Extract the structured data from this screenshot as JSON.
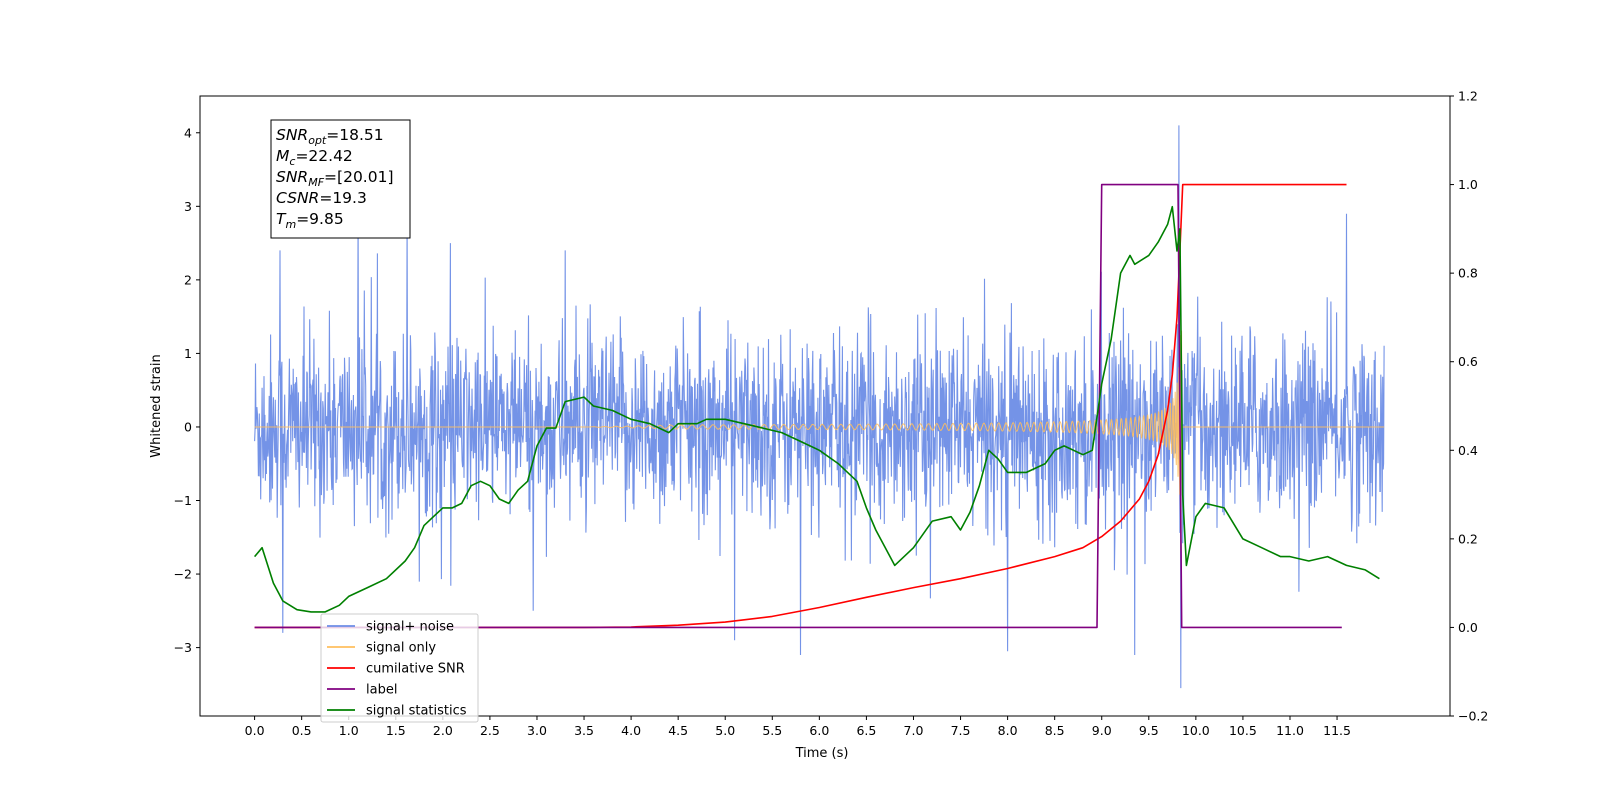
{
  "chart_data": {
    "type": "line",
    "xlabel": "Time (s)",
    "ylabel_left": "Whitened strain",
    "ylabel_right": "",
    "xlim": [
      -0.58,
      12.7
    ],
    "ylim_left": [
      -3.93,
      4.5
    ],
    "ylim_right": [
      -0.2,
      1.2
    ],
    "x_ticks": [
      0.0,
      0.5,
      1.0,
      1.5,
      2.0,
      2.5,
      3.0,
      3.5,
      4.0,
      4.5,
      5.0,
      5.5,
      6.0,
      6.5,
      7.0,
      7.5,
      8.0,
      8.5,
      9.0,
      9.5,
      10.0,
      10.5,
      11.0,
      11.5
    ],
    "x_tick_labels": [
      "0.0",
      "0.5",
      "1.0",
      "1.5",
      "2.0",
      "2.5",
      "3.0",
      "3.5",
      "4.0",
      "4.5",
      "5.0",
      "5.5",
      "6.0",
      "6.5",
      "7.0",
      "7.5",
      "8.0",
      "8.5",
      "9.0",
      "9.5",
      "10.0",
      "10.5",
      "11.0",
      "11.5"
    ],
    "y_ticks_left": [
      4,
      3,
      2,
      1,
      0,
      -1,
      -2,
      -3
    ],
    "y_tick_labels_left": [
      "4",
      "3",
      "2",
      "1",
      "0",
      "−1",
      "−2",
      "−3"
    ],
    "y_ticks_right": [
      1.2,
      1.0,
      0.8,
      0.6,
      0.4,
      0.2,
      0.0,
      -0.2
    ],
    "y_tick_labels_right": [
      "1.2",
      "1.0",
      "0.8",
      "0.6",
      "0.4",
      "0.2",
      "0.0",
      "−0.2"
    ],
    "grid": false,
    "legend_position": "lower-left",
    "info_box": [
      {
        "base": "SNR",
        "sub": "opt",
        "rest": "=18.51"
      },
      {
        "base": "M",
        "sub": "c",
        "rest": "=22.42"
      },
      {
        "base": "SNR",
        "sub": "MF",
        "rest": "=[20.01]"
      },
      {
        "base": "CSNR",
        "sub": "",
        "rest": "=19.3"
      },
      {
        "base": "T",
        "sub": "m",
        "rest": "=9.85"
      }
    ],
    "series": [
      {
        "name": "signal+ noise",
        "axis": "left",
        "color": "#6d8de6",
        "kind": "noise",
        "x_range": [
          0.0,
          12.0
        ],
        "envelope": 1.6,
        "peaks": [
          {
            "x": 0.3,
            "y": -2.8
          },
          {
            "x": 0.27,
            "y": 2.4
          },
          {
            "x": 1.1,
            "y": 2.9
          },
          {
            "x": 1.62,
            "y": 2.8
          },
          {
            "x": 2.08,
            "y": 2.5
          },
          {
            "x": 3.3,
            "y": 2.4
          },
          {
            "x": 5.1,
            "y": -2.9
          },
          {
            "x": 5.8,
            "y": -3.1
          },
          {
            "x": 8.0,
            "y": -3.05
          },
          {
            "x": 9.35,
            "y": -3.1
          },
          {
            "x": 9.82,
            "y": 4.1
          },
          {
            "x": 9.84,
            "y": -3.55
          },
          {
            "x": 11.6,
            "y": 2.9
          }
        ]
      },
      {
        "name": "signal only",
        "axis": "left",
        "color": "#ffbf5e",
        "kind": "chirp",
        "x_range": [
          0.0,
          12.0
        ],
        "merger_time": 9.85
      },
      {
        "name": "cumilative SNR",
        "axis": "right",
        "color": "#ff0000",
        "points": [
          [
            0.0,
            0.0
          ],
          [
            3.5,
            0.0
          ],
          [
            4.0,
            0.001
          ],
          [
            4.5,
            0.005
          ],
          [
            5.0,
            0.012
          ],
          [
            5.5,
            0.025
          ],
          [
            6.0,
            0.045
          ],
          [
            6.5,
            0.068
          ],
          [
            7.0,
            0.09
          ],
          [
            7.5,
            0.11
          ],
          [
            8.0,
            0.133
          ],
          [
            8.5,
            0.16
          ],
          [
            8.8,
            0.18
          ],
          [
            9.0,
            0.205
          ],
          [
            9.2,
            0.24
          ],
          [
            9.4,
            0.29
          ],
          [
            9.5,
            0.33
          ],
          [
            9.6,
            0.39
          ],
          [
            9.7,
            0.49
          ],
          [
            9.75,
            0.57
          ],
          [
            9.8,
            0.7
          ],
          [
            9.83,
            0.85
          ],
          [
            9.86,
            1.0
          ],
          [
            11.6,
            1.0
          ]
        ]
      },
      {
        "name": "label",
        "axis": "right",
        "color": "#800080",
        "points": [
          [
            0.0,
            0.0
          ],
          [
            8.95,
            0.0
          ],
          [
            9.0,
            1.0
          ],
          [
            9.81,
            1.0
          ],
          [
            9.85,
            0.0
          ],
          [
            11.55,
            0.0
          ]
        ]
      },
      {
        "name": "signal statistics",
        "axis": "right",
        "color": "#008000",
        "points": [
          [
            0.0,
            0.16
          ],
          [
            0.08,
            0.18
          ],
          [
            0.2,
            0.1
          ],
          [
            0.3,
            0.06
          ],
          [
            0.45,
            0.04
          ],
          [
            0.6,
            0.035
          ],
          [
            0.75,
            0.035
          ],
          [
            0.9,
            0.05
          ],
          [
            1.0,
            0.07
          ],
          [
            1.2,
            0.09
          ],
          [
            1.4,
            0.11
          ],
          [
            1.6,
            0.15
          ],
          [
            1.7,
            0.18
          ],
          [
            1.8,
            0.23
          ],
          [
            1.9,
            0.25
          ],
          [
            2.0,
            0.27
          ],
          [
            2.1,
            0.27
          ],
          [
            2.2,
            0.28
          ],
          [
            2.3,
            0.32
          ],
          [
            2.4,
            0.33
          ],
          [
            2.5,
            0.32
          ],
          [
            2.6,
            0.29
          ],
          [
            2.7,
            0.28
          ],
          [
            2.8,
            0.31
          ],
          [
            2.9,
            0.33
          ],
          [
            3.0,
            0.41
          ],
          [
            3.1,
            0.45
          ],
          [
            3.2,
            0.45
          ],
          [
            3.3,
            0.51
          ],
          [
            3.5,
            0.52
          ],
          [
            3.6,
            0.5
          ],
          [
            3.8,
            0.49
          ],
          [
            4.0,
            0.47
          ],
          [
            4.2,
            0.46
          ],
          [
            4.4,
            0.44
          ],
          [
            4.5,
            0.46
          ],
          [
            4.7,
            0.46
          ],
          [
            4.8,
            0.47
          ],
          [
            5.0,
            0.47
          ],
          [
            5.2,
            0.46
          ],
          [
            5.4,
            0.45
          ],
          [
            5.6,
            0.44
          ],
          [
            5.8,
            0.42
          ],
          [
            6.0,
            0.4
          ],
          [
            6.2,
            0.37
          ],
          [
            6.4,
            0.33
          ],
          [
            6.5,
            0.27
          ],
          [
            6.6,
            0.22
          ],
          [
            6.8,
            0.14
          ],
          [
            7.0,
            0.18
          ],
          [
            7.2,
            0.24
          ],
          [
            7.4,
            0.25
          ],
          [
            7.5,
            0.22
          ],
          [
            7.6,
            0.26
          ],
          [
            7.7,
            0.32
          ],
          [
            7.8,
            0.4
          ],
          [
            7.9,
            0.38
          ],
          [
            8.0,
            0.35
          ],
          [
            8.2,
            0.35
          ],
          [
            8.4,
            0.37
          ],
          [
            8.5,
            0.4
          ],
          [
            8.6,
            0.41
          ],
          [
            8.8,
            0.39
          ],
          [
            8.9,
            0.4
          ],
          [
            9.0,
            0.55
          ],
          [
            9.1,
            0.65
          ],
          [
            9.2,
            0.8
          ],
          [
            9.3,
            0.84
          ],
          [
            9.35,
            0.82
          ],
          [
            9.5,
            0.84
          ],
          [
            9.6,
            0.87
          ],
          [
            9.7,
            0.91
          ],
          [
            9.75,
            0.95
          ],
          [
            9.8,
            0.85
          ],
          [
            9.83,
            0.9
          ],
          [
            9.86,
            0.3
          ],
          [
            9.9,
            0.14
          ],
          [
            10.0,
            0.25
          ],
          [
            10.1,
            0.28
          ],
          [
            10.3,
            0.27
          ],
          [
            10.5,
            0.2
          ],
          [
            10.7,
            0.18
          ],
          [
            10.9,
            0.16
          ],
          [
            11.0,
            0.16
          ],
          [
            11.2,
            0.15
          ],
          [
            11.4,
            0.16
          ],
          [
            11.6,
            0.14
          ],
          [
            11.8,
            0.13
          ],
          [
            11.95,
            0.11
          ]
        ]
      }
    ],
    "legend": [
      {
        "label": "signal+ noise",
        "color": "#6d8de6"
      },
      {
        "label": "signal only",
        "color": "#ffbf5e"
      },
      {
        "label": "cumilative SNR",
        "color": "#ff0000"
      },
      {
        "label": "label",
        "color": "#800080"
      },
      {
        "label": "signal statistics",
        "color": "#008000"
      }
    ]
  }
}
